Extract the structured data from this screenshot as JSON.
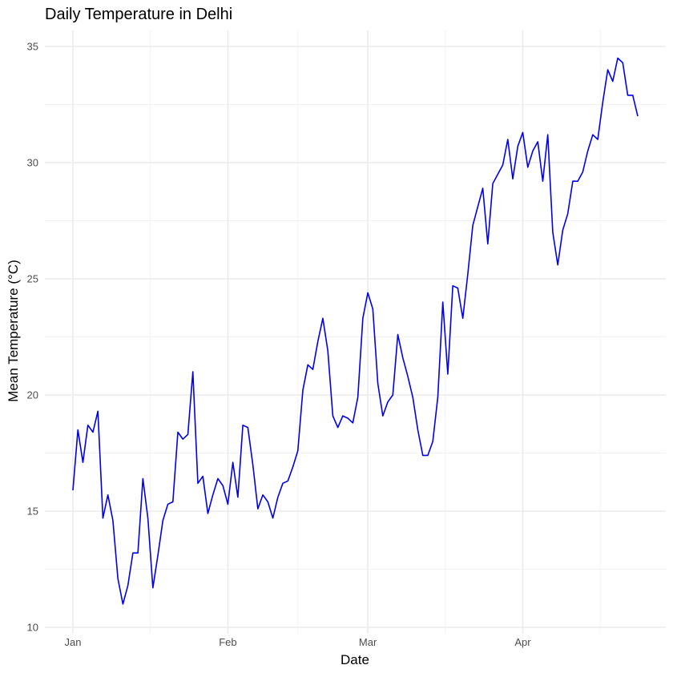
{
  "chart_data": {
    "type": "line",
    "title": "Daily Temperature in Delhi",
    "xlabel": "Date",
    "ylabel": "Mean Temperature (°C)",
    "x_axis_type": "date",
    "xlim": [
      "2013-01-01",
      "2013-04-24"
    ],
    "ylim": [
      10,
      35
    ],
    "grid": true,
    "legend": "none",
    "line_color": "#0000ee",
    "x_ticks": [
      {
        "label": "Jan",
        "date": "2013-01-01"
      },
      {
        "label": "Feb",
        "date": "2013-02-01"
      },
      {
        "label": "Mar",
        "date": "2013-03-01"
      },
      {
        "label": "Apr",
        "date": "2013-04-01"
      }
    ],
    "y_ticks": [
      10,
      15,
      20,
      25,
      30,
      35
    ],
    "series": [
      {
        "x": [
          "2013-01-01",
          "2013-01-02",
          "2013-01-03",
          "2013-01-04",
          "2013-01-05",
          "2013-01-06",
          "2013-01-07",
          "2013-01-08",
          "2013-01-09",
          "2013-01-10",
          "2013-01-11",
          "2013-01-12",
          "2013-01-13",
          "2013-01-14",
          "2013-01-15",
          "2013-01-16",
          "2013-01-17",
          "2013-01-18",
          "2013-01-19",
          "2013-01-20",
          "2013-01-21",
          "2013-01-22",
          "2013-01-23",
          "2013-01-24",
          "2013-01-25",
          "2013-01-26",
          "2013-01-27",
          "2013-01-28",
          "2013-01-29",
          "2013-01-30",
          "2013-01-31",
          "2013-02-01",
          "2013-02-02",
          "2013-02-03",
          "2013-02-04",
          "2013-02-05",
          "2013-02-06",
          "2013-02-07",
          "2013-02-08",
          "2013-02-09",
          "2013-02-10",
          "2013-02-11",
          "2013-02-12",
          "2013-02-13",
          "2013-02-14",
          "2013-02-15",
          "2013-02-16",
          "2013-02-17",
          "2013-02-18",
          "2013-02-19",
          "2013-02-20",
          "2013-02-21",
          "2013-02-22",
          "2013-02-23",
          "2013-02-24",
          "2013-02-25",
          "2013-02-26",
          "2013-02-27",
          "2013-02-28",
          "2013-03-01",
          "2013-03-02",
          "2013-03-03",
          "2013-03-04",
          "2013-03-05",
          "2013-03-06",
          "2013-03-07",
          "2013-03-08",
          "2013-03-09",
          "2013-03-10",
          "2013-03-11",
          "2013-03-12",
          "2013-03-13",
          "2013-03-14",
          "2013-03-15",
          "2013-03-16",
          "2013-03-17",
          "2013-03-18",
          "2013-03-19",
          "2013-03-20",
          "2013-03-21",
          "2013-03-22",
          "2013-03-23",
          "2013-03-24",
          "2013-03-25",
          "2013-03-26",
          "2013-03-27",
          "2013-03-28",
          "2013-03-29",
          "2013-03-30",
          "2013-03-31",
          "2013-04-01",
          "2013-04-02",
          "2013-04-03",
          "2013-04-04",
          "2013-04-05",
          "2013-04-06",
          "2013-04-07",
          "2013-04-08",
          "2013-04-09",
          "2013-04-10",
          "2013-04-11",
          "2013-04-12",
          "2013-04-13",
          "2013-04-14",
          "2013-04-15",
          "2013-04-16",
          "2013-04-17",
          "2013-04-18",
          "2013-04-19",
          "2013-04-20",
          "2013-04-21",
          "2013-04-22",
          "2013-04-23",
          "2013-04-24"
        ],
        "values": [
          15.9,
          18.5,
          17.1,
          18.7,
          18.4,
          19.3,
          14.7,
          15.7,
          14.6,
          12.1,
          11.0,
          11.8,
          13.2,
          13.2,
          16.4,
          14.7,
          11.7,
          13.1,
          14.6,
          15.3,
          15.4,
          18.4,
          18.1,
          18.3,
          21.0,
          16.2,
          16.5,
          14.9,
          15.7,
          16.4,
          16.1,
          15.3,
          17.1,
          15.6,
          18.7,
          18.6,
          17.0,
          15.1,
          15.7,
          15.4,
          14.7,
          15.6,
          16.2,
          16.3,
          16.9,
          17.6,
          20.2,
          21.3,
          21.1,
          22.3,
          23.3,
          21.9,
          19.1,
          18.6,
          19.1,
          19.0,
          18.8,
          19.9,
          23.3,
          24.4,
          23.7,
          20.5,
          19.1,
          19.7,
          20.0,
          22.6,
          21.6,
          20.8,
          19.9,
          18.5,
          17.4,
          17.4,
          18.0,
          19.9,
          24.0,
          20.9,
          24.7,
          24.6,
          23.3,
          25.2,
          27.3,
          28.1,
          28.9,
          26.5,
          29.1,
          29.5,
          29.9,
          31.0,
          29.3,
          30.7,
          31.3,
          29.8,
          30.5,
          30.9,
          29.2,
          31.2,
          27.0,
          25.6,
          27.1,
          27.8,
          29.2,
          29.2,
          29.6,
          30.5,
          31.2,
          31.0,
          32.6,
          34.0,
          33.5,
          34.5,
          34.3,
          32.9,
          32.9,
          32.0
        ]
      }
    ]
  }
}
